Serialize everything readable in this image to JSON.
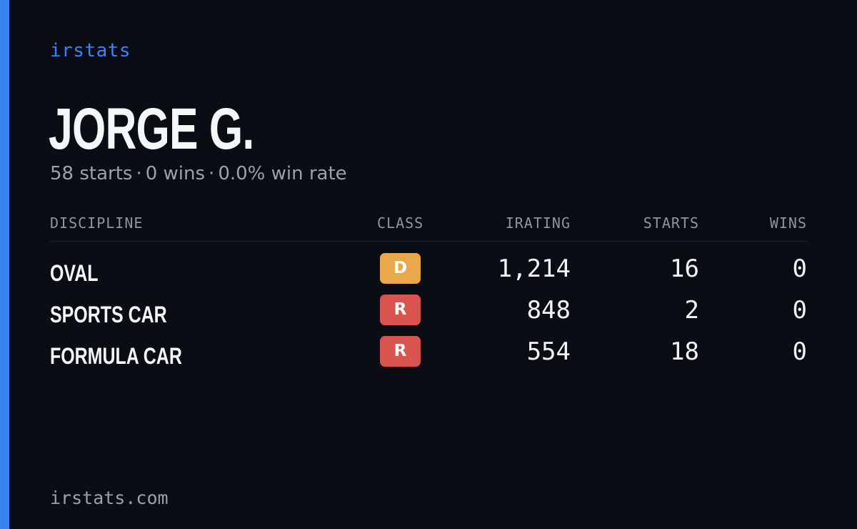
{
  "brand": "irstats",
  "driver_name": "JORGE G.",
  "summary": {
    "starts": "58 starts",
    "separator": "·",
    "wins": "0 wins",
    "win_rate": "0.0% win rate"
  },
  "table": {
    "headers": {
      "discipline": "DISCIPLINE",
      "class": "CLASS",
      "irating": "IRATING",
      "starts": "STARTS",
      "wins": "WINS"
    },
    "rows": [
      {
        "discipline": "OVAL",
        "class": "D",
        "class_color": "#e9a94a",
        "irating": "1,214",
        "starts": "16",
        "wins": "0"
      },
      {
        "discipline": "SPORTS CAR",
        "class": "R",
        "class_color": "#d9534f",
        "irating": "848",
        "starts": "2",
        "wins": "0"
      },
      {
        "discipline": "FORMULA CAR",
        "class": "R",
        "class_color": "#d9534f",
        "irating": "554",
        "starts": "18",
        "wins": "0"
      }
    ]
  },
  "footer": "irstats.com",
  "colors": {
    "accent": "#3b82f6",
    "background": "#0a0d14"
  }
}
